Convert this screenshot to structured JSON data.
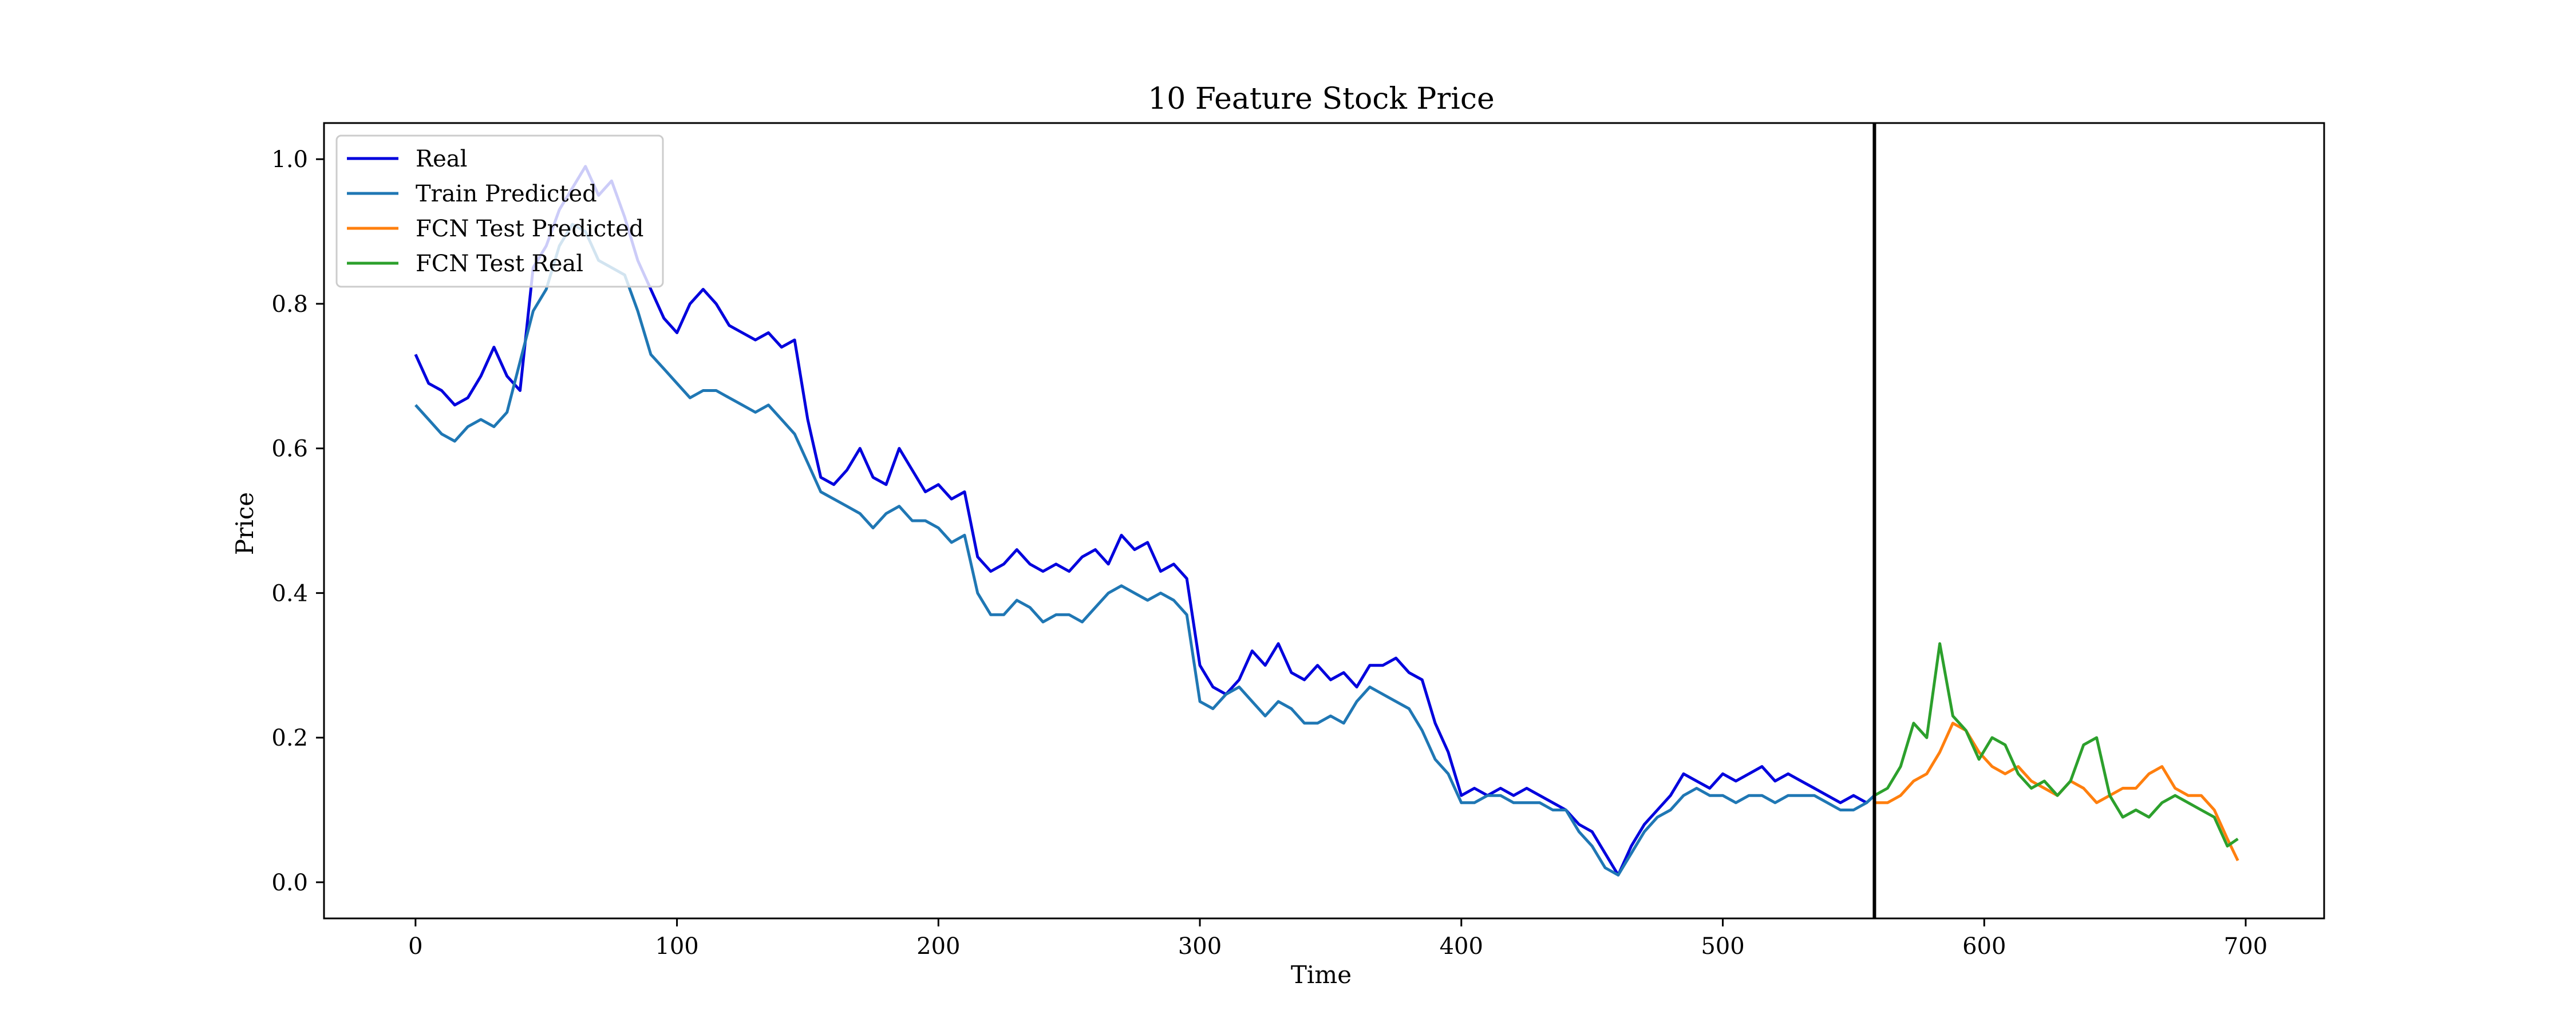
{
  "chart_data": {
    "type": "line",
    "title": "10 Feature Stock Price",
    "xlabel": "Time",
    "ylabel": "Price",
    "xlim": [
      -35,
      730
    ],
    "ylim": [
      -0.05,
      1.05
    ],
    "xticks": [
      0,
      100,
      200,
      300,
      400,
      500,
      600,
      700
    ],
    "yticks": [
      0.0,
      0.2,
      0.4,
      0.6,
      0.8,
      1.0
    ],
    "grid": false,
    "legend_position": "top-left",
    "split_line_x": 558,
    "colors": {
      "real": "#0000dd",
      "train_predicted": "#1f77b4",
      "test_predicted": "#ff7f0e",
      "test_real": "#2ca02c",
      "split_line": "#000000"
    },
    "series": [
      {
        "name": "Real",
        "key": "real",
        "x": [
          0,
          5,
          10,
          15,
          20,
          25,
          30,
          35,
          40,
          45,
          50,
          55,
          60,
          65,
          70,
          75,
          80,
          85,
          90,
          95,
          100,
          105,
          110,
          115,
          120,
          125,
          130,
          135,
          140,
          145,
          150,
          155,
          160,
          165,
          170,
          175,
          180,
          185,
          190,
          195,
          200,
          205,
          210,
          215,
          220,
          225,
          230,
          235,
          240,
          245,
          250,
          255,
          260,
          265,
          270,
          275,
          280,
          285,
          290,
          295,
          300,
          305,
          310,
          315,
          320,
          325,
          330,
          335,
          340,
          345,
          350,
          355,
          360,
          365,
          370,
          375,
          380,
          385,
          390,
          395,
          400,
          405,
          410,
          415,
          420,
          425,
          430,
          435,
          440,
          445,
          450,
          455,
          460,
          465,
          470,
          475,
          480,
          485,
          490,
          495,
          500,
          505,
          510,
          515,
          520,
          525,
          530,
          535,
          540,
          545,
          550,
          555,
          558
        ],
        "values": [
          0.73,
          0.69,
          0.68,
          0.66,
          0.67,
          0.7,
          0.74,
          0.7,
          0.68,
          0.85,
          0.88,
          0.93,
          0.96,
          0.99,
          0.95,
          0.97,
          0.92,
          0.86,
          0.82,
          0.78,
          0.76,
          0.8,
          0.82,
          0.8,
          0.77,
          0.76,
          0.75,
          0.76,
          0.74,
          0.75,
          0.64,
          0.56,
          0.55,
          0.57,
          0.6,
          0.56,
          0.55,
          0.6,
          0.57,
          0.54,
          0.55,
          0.53,
          0.54,
          0.45,
          0.43,
          0.44,
          0.46,
          0.44,
          0.43,
          0.44,
          0.43,
          0.45,
          0.46,
          0.44,
          0.48,
          0.46,
          0.47,
          0.43,
          0.44,
          0.42,
          0.3,
          0.27,
          0.26,
          0.28,
          0.32,
          0.3,
          0.33,
          0.29,
          0.28,
          0.3,
          0.28,
          0.29,
          0.27,
          0.3,
          0.3,
          0.31,
          0.29,
          0.28,
          0.22,
          0.18,
          0.12,
          0.13,
          0.12,
          0.13,
          0.12,
          0.13,
          0.12,
          0.11,
          0.1,
          0.08,
          0.07,
          0.04,
          0.01,
          0.05,
          0.08,
          0.1,
          0.12,
          0.15,
          0.14,
          0.13,
          0.15,
          0.14,
          0.15,
          0.16,
          0.14,
          0.15,
          0.14,
          0.13,
          0.12,
          0.11,
          0.12,
          0.11,
          0.12
        ]
      },
      {
        "name": "Train Predicted",
        "key": "train_predicted",
        "x": [
          0,
          5,
          10,
          15,
          20,
          25,
          30,
          35,
          40,
          45,
          50,
          55,
          60,
          65,
          70,
          75,
          80,
          85,
          90,
          95,
          100,
          105,
          110,
          115,
          120,
          125,
          130,
          135,
          140,
          145,
          150,
          155,
          160,
          165,
          170,
          175,
          180,
          185,
          190,
          195,
          200,
          205,
          210,
          215,
          220,
          225,
          230,
          235,
          240,
          245,
          250,
          255,
          260,
          265,
          270,
          275,
          280,
          285,
          290,
          295,
          300,
          305,
          310,
          315,
          320,
          325,
          330,
          335,
          340,
          345,
          350,
          355,
          360,
          365,
          370,
          375,
          380,
          385,
          390,
          395,
          400,
          405,
          410,
          415,
          420,
          425,
          430,
          435,
          440,
          445,
          450,
          455,
          460,
          465,
          470,
          475,
          480,
          485,
          490,
          495,
          500,
          505,
          510,
          515,
          520,
          525,
          530,
          535,
          540,
          545,
          550,
          555,
          558
        ],
        "values": [
          0.66,
          0.64,
          0.62,
          0.61,
          0.63,
          0.64,
          0.63,
          0.65,
          0.72,
          0.79,
          0.82,
          0.88,
          0.91,
          0.9,
          0.86,
          0.85,
          0.84,
          0.79,
          0.73,
          0.71,
          0.69,
          0.67,
          0.68,
          0.68,
          0.67,
          0.66,
          0.65,
          0.66,
          0.64,
          0.62,
          0.58,
          0.54,
          0.53,
          0.52,
          0.51,
          0.49,
          0.51,
          0.52,
          0.5,
          0.5,
          0.49,
          0.47,
          0.48,
          0.4,
          0.37,
          0.37,
          0.39,
          0.38,
          0.36,
          0.37,
          0.37,
          0.36,
          0.38,
          0.4,
          0.41,
          0.4,
          0.39,
          0.4,
          0.39,
          0.37,
          0.25,
          0.24,
          0.26,
          0.27,
          0.25,
          0.23,
          0.25,
          0.24,
          0.22,
          0.22,
          0.23,
          0.22,
          0.25,
          0.27,
          0.26,
          0.25,
          0.24,
          0.21,
          0.17,
          0.15,
          0.11,
          0.11,
          0.12,
          0.12,
          0.11,
          0.11,
          0.11,
          0.1,
          0.1,
          0.07,
          0.05,
          0.02,
          0.01,
          0.04,
          0.07,
          0.09,
          0.1,
          0.12,
          0.13,
          0.12,
          0.12,
          0.11,
          0.12,
          0.12,
          0.11,
          0.12,
          0.12,
          0.12,
          0.11,
          0.1,
          0.1,
          0.11,
          0.12
        ]
      },
      {
        "name": "FCN Test Predicted",
        "key": "test_predicted",
        "x": [
          558,
          563,
          568,
          573,
          578,
          583,
          588,
          593,
          598,
          603,
          608,
          613,
          618,
          623,
          628,
          633,
          638,
          643,
          648,
          653,
          658,
          663,
          668,
          673,
          678,
          683,
          688,
          693,
          697
        ],
        "values": [
          0.11,
          0.11,
          0.12,
          0.14,
          0.15,
          0.18,
          0.22,
          0.21,
          0.18,
          0.16,
          0.15,
          0.16,
          0.14,
          0.13,
          0.12,
          0.14,
          0.13,
          0.11,
          0.12,
          0.13,
          0.13,
          0.15,
          0.16,
          0.13,
          0.12,
          0.12,
          0.1,
          0.06,
          0.03
        ]
      },
      {
        "name": "FCN Test Real",
        "key": "test_real",
        "x": [
          558,
          563,
          568,
          573,
          578,
          583,
          588,
          593,
          598,
          603,
          608,
          613,
          618,
          623,
          628,
          633,
          638,
          643,
          648,
          653,
          658,
          663,
          668,
          673,
          678,
          683,
          688,
          693,
          697
        ],
        "values": [
          0.12,
          0.13,
          0.16,
          0.22,
          0.2,
          0.33,
          0.23,
          0.21,
          0.17,
          0.2,
          0.19,
          0.15,
          0.13,
          0.14,
          0.12,
          0.14,
          0.19,
          0.2,
          0.12,
          0.09,
          0.1,
          0.09,
          0.11,
          0.12,
          0.11,
          0.1,
          0.09,
          0.05,
          0.06
        ]
      }
    ]
  }
}
